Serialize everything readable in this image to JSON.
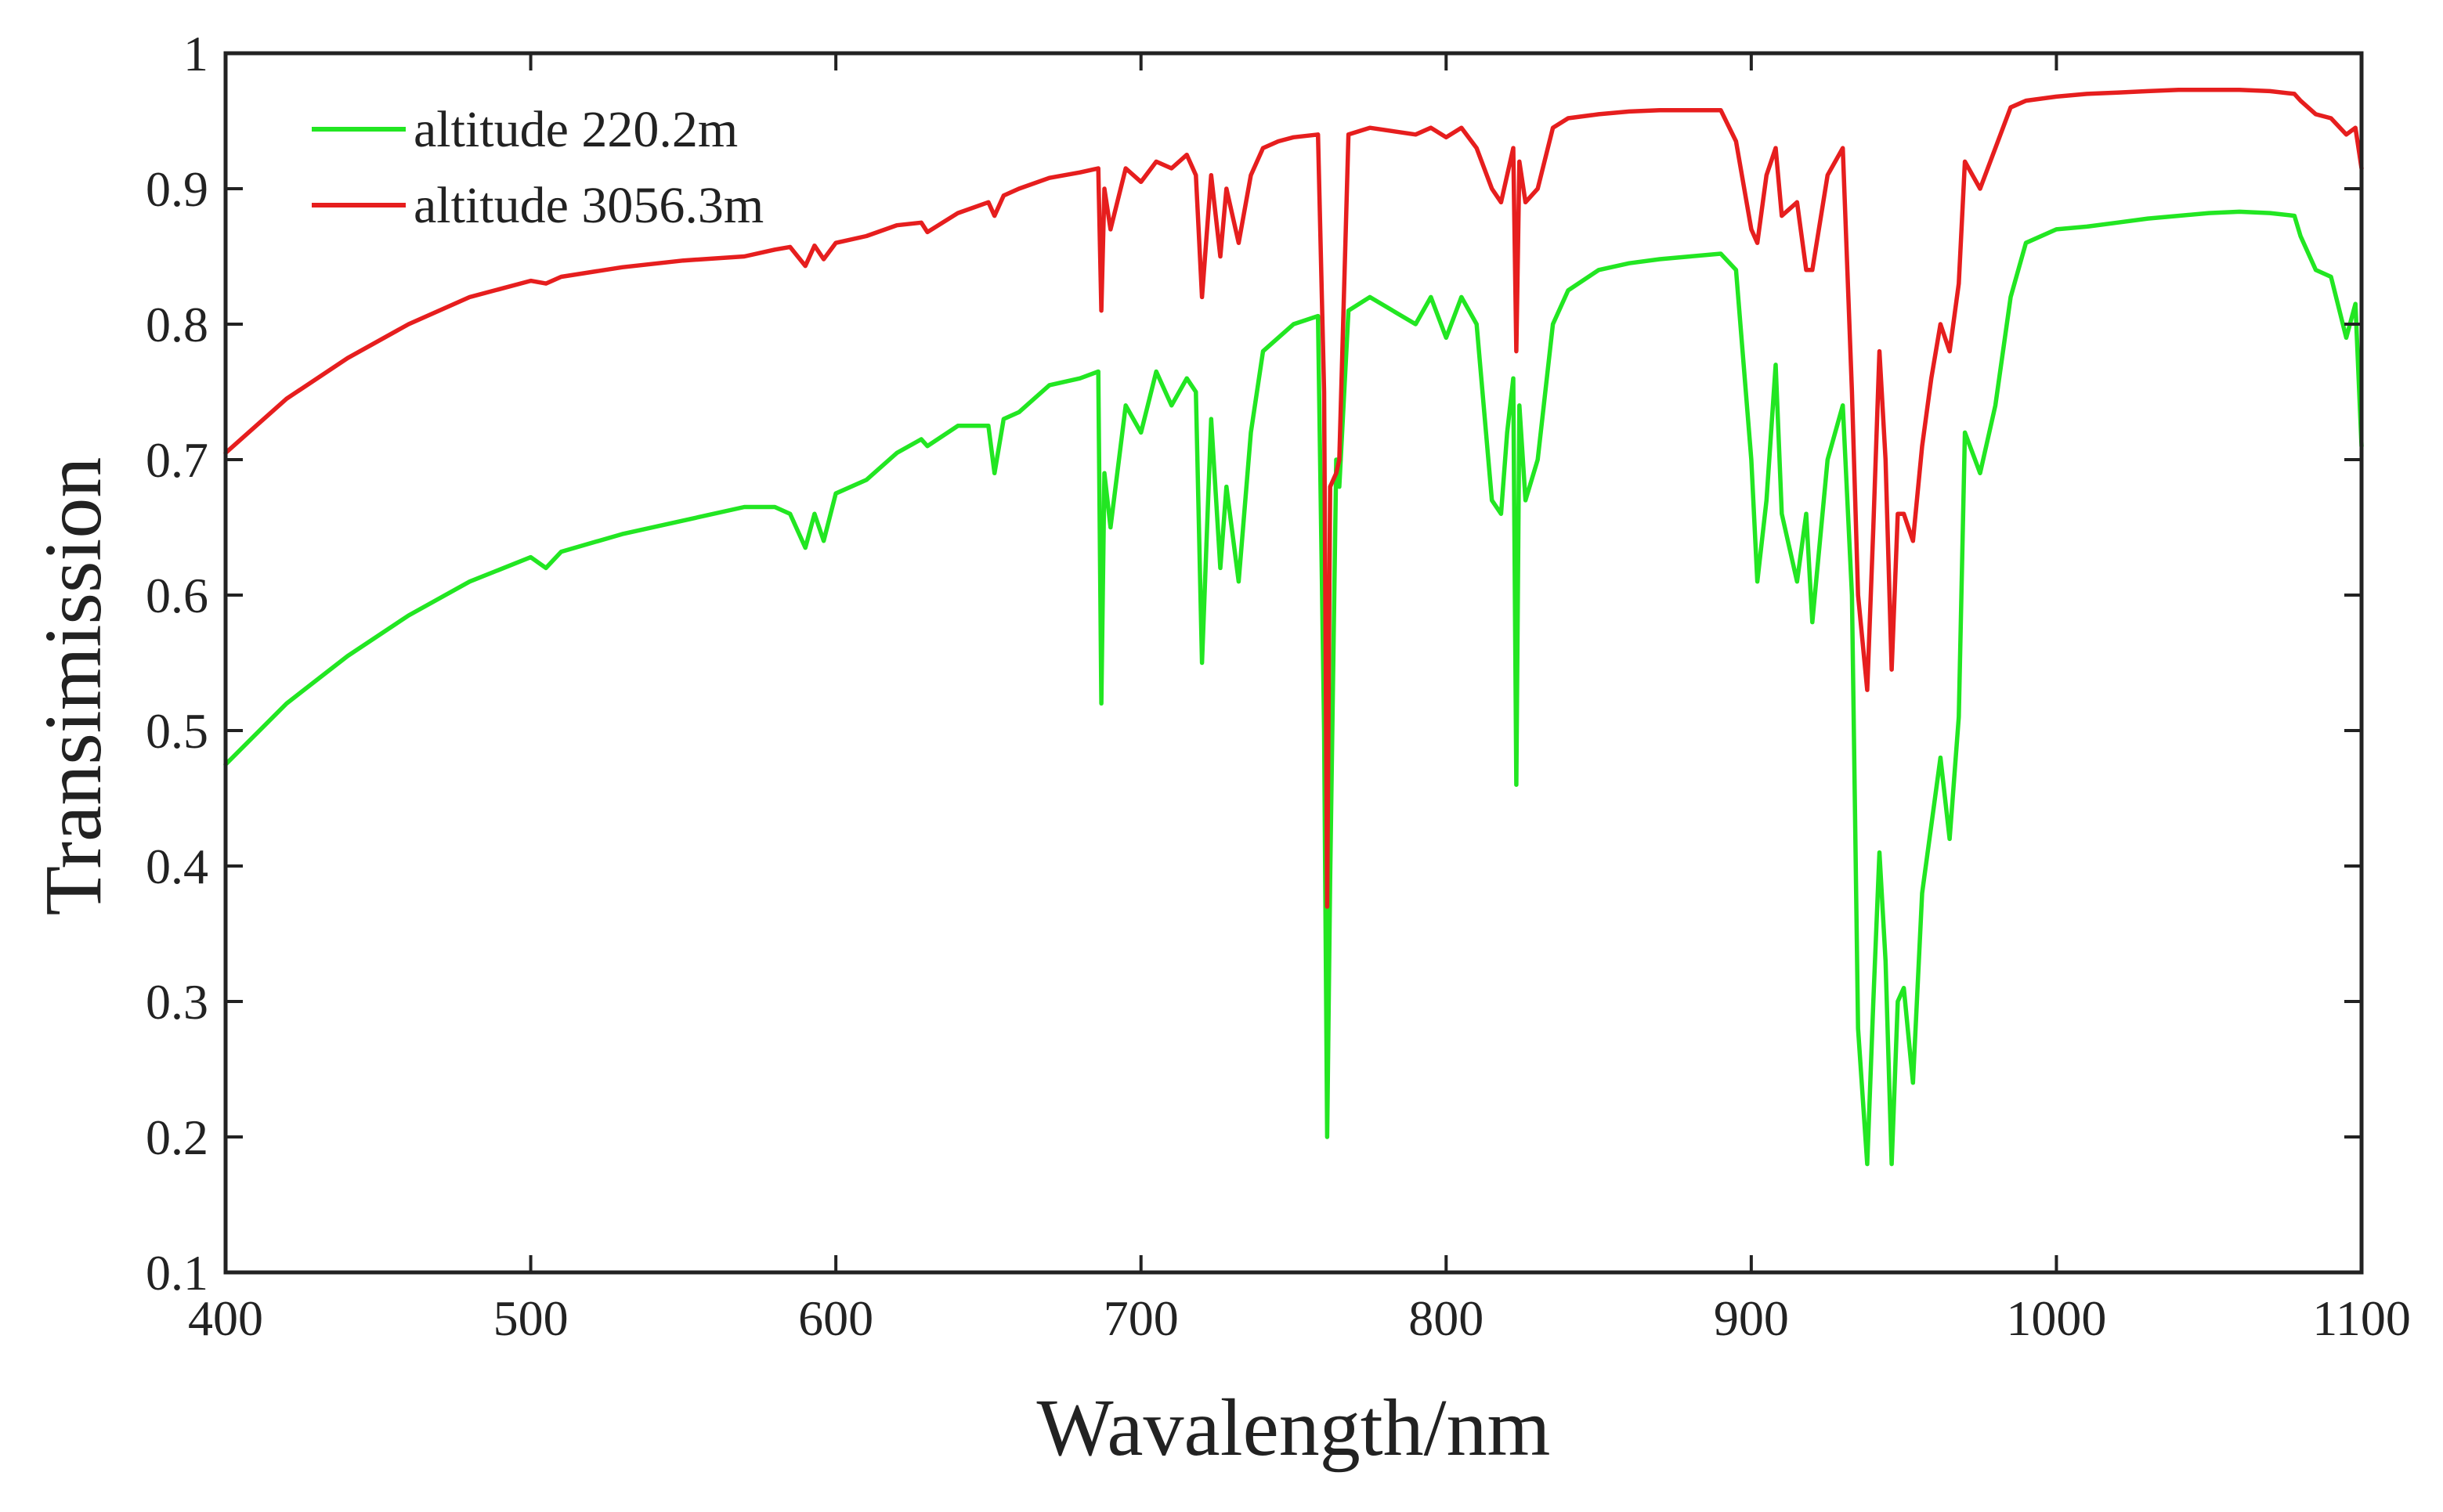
{
  "chart_data": {
    "type": "line",
    "title": "",
    "xlabel": "Wavalength/nm",
    "ylabel": "Transimission",
    "xlim": [
      400,
      1100
    ],
    "ylim": [
      0.1,
      1.0
    ],
    "xticks": [
      400,
      500,
      600,
      700,
      800,
      900,
      1000,
      1100
    ],
    "xtick_labels": [
      "400",
      "500",
      "600",
      "700",
      "800",
      "900",
      "1000",
      "1100"
    ],
    "yticks": [
      0.1,
      0.2,
      0.3,
      0.4,
      0.5,
      0.6,
      0.7,
      0.8,
      0.9,
      1.0
    ],
    "ytick_labels": [
      "0.1",
      "0.2",
      "0.3",
      "0.4",
      "0.5",
      "0.6",
      "0.7",
      "0.8",
      "0.9",
      "1"
    ],
    "grid": false,
    "legend_position": "top-left",
    "series": [
      {
        "name": "altitude 220.2m",
        "color": "#22e622",
        "x": [
          400,
          420,
          440,
          460,
          480,
          500,
          505,
          510,
          530,
          550,
          570,
          580,
          585,
          590,
          593,
          596,
          600,
          610,
          620,
          628,
          630,
          640,
          650,
          652,
          655,
          660,
          670,
          680,
          686,
          687,
          688,
          690,
          695,
          700,
          705,
          710,
          715,
          718,
          720,
          723,
          726,
          728,
          732,
          736,
          740,
          745,
          750,
          758,
          760,
          761,
          762,
          764,
          765,
          768,
          775,
          790,
          795,
          800,
          805,
          810,
          815,
          818,
          820,
          822,
          823,
          824,
          826,
          830,
          835,
          840,
          850,
          860,
          870,
          880,
          890,
          895,
          900,
          902,
          905,
          908,
          910,
          915,
          918,
          920,
          925,
          930,
          933,
          935,
          938,
          940,
          942,
          944,
          946,
          948,
          950,
          953,
          956,
          959,
          962,
          965,
          968,
          970,
          975,
          980,
          985,
          990,
          1000,
          1010,
          1020,
          1030,
          1040,
          1050,
          1060,
          1070,
          1078,
          1080,
          1085,
          1090,
          1095,
          1098,
          1100
        ],
        "values": [
          0.475,
          0.52,
          0.555,
          0.585,
          0.61,
          0.628,
          0.62,
          0.632,
          0.645,
          0.655,
          0.665,
          0.665,
          0.66,
          0.635,
          0.66,
          0.64,
          0.675,
          0.685,
          0.705,
          0.715,
          0.71,
          0.725,
          0.725,
          0.69,
          0.73,
          0.735,
          0.755,
          0.76,
          0.765,
          0.52,
          0.69,
          0.65,
          0.74,
          0.72,
          0.765,
          0.74,
          0.76,
          0.75,
          0.55,
          0.73,
          0.62,
          0.68,
          0.61,
          0.72,
          0.78,
          0.79,
          0.8,
          0.806,
          0.5,
          0.2,
          0.39,
          0.7,
          0.68,
          0.81,
          0.82,
          0.8,
          0.82,
          0.79,
          0.82,
          0.8,
          0.67,
          0.66,
          0.72,
          0.76,
          0.46,
          0.74,
          0.67,
          0.7,
          0.8,
          0.825,
          0.84,
          0.845,
          0.848,
          0.85,
          0.852,
          0.84,
          0.7,
          0.61,
          0.67,
          0.77,
          0.66,
          0.61,
          0.66,
          0.58,
          0.7,
          0.74,
          0.6,
          0.28,
          0.18,
          0.3,
          0.41,
          0.33,
          0.18,
          0.3,
          0.31,
          0.24,
          0.38,
          0.43,
          0.48,
          0.42,
          0.51,
          0.72,
          0.69,
          0.74,
          0.82,
          0.86,
          0.87,
          0.872,
          0.875,
          0.878,
          0.88,
          0.882,
          0.883,
          0.882,
          0.88,
          0.865,
          0.84,
          0.835,
          0.79,
          0.815,
          0.71
        ]
      },
      {
        "name": "altitude 3056.3m",
        "color": "#e61e1e",
        "x": [
          400,
          420,
          440,
          460,
          480,
          500,
          505,
          510,
          530,
          550,
          570,
          580,
          585,
          590,
          593,
          596,
          600,
          610,
          620,
          628,
          630,
          640,
          650,
          652,
          655,
          660,
          670,
          680,
          686,
          687,
          688,
          690,
          695,
          700,
          705,
          710,
          715,
          718,
          720,
          723,
          726,
          728,
          732,
          736,
          740,
          745,
          750,
          758,
          760,
          761,
          762,
          764,
          765,
          768,
          775,
          790,
          795,
          800,
          805,
          810,
          815,
          818,
          820,
          822,
          823,
          824,
          826,
          830,
          835,
          840,
          850,
          860,
          870,
          880,
          890,
          895,
          900,
          902,
          905,
          908,
          910,
          915,
          918,
          920,
          925,
          930,
          933,
          935,
          938,
          940,
          942,
          944,
          946,
          948,
          950,
          953,
          956,
          959,
          962,
          965,
          968,
          970,
          975,
          980,
          985,
          990,
          1000,
          1010,
          1020,
          1030,
          1040,
          1050,
          1060,
          1070,
          1078,
          1080,
          1085,
          1090,
          1095,
          1098,
          1100
        ],
        "values": [
          0.705,
          0.745,
          0.775,
          0.8,
          0.82,
          0.832,
          0.83,
          0.835,
          0.842,
          0.847,
          0.85,
          0.855,
          0.857,
          0.843,
          0.858,
          0.848,
          0.86,
          0.865,
          0.873,
          0.875,
          0.868,
          0.882,
          0.89,
          0.88,
          0.895,
          0.9,
          0.908,
          0.912,
          0.915,
          0.81,
          0.9,
          0.87,
          0.915,
          0.905,
          0.92,
          0.915,
          0.925,
          0.91,
          0.82,
          0.91,
          0.85,
          0.9,
          0.86,
          0.91,
          0.93,
          0.935,
          0.938,
          0.94,
          0.75,
          0.37,
          0.68,
          0.69,
          0.7,
          0.94,
          0.945,
          0.94,
          0.945,
          0.938,
          0.945,
          0.93,
          0.9,
          0.89,
          0.91,
          0.93,
          0.78,
          0.92,
          0.89,
          0.9,
          0.945,
          0.952,
          0.955,
          0.957,
          0.958,
          0.958,
          0.958,
          0.935,
          0.87,
          0.86,
          0.91,
          0.93,
          0.88,
          0.89,
          0.84,
          0.84,
          0.91,
          0.93,
          0.75,
          0.6,
          0.53,
          0.65,
          0.78,
          0.7,
          0.545,
          0.66,
          0.66,
          0.64,
          0.71,
          0.76,
          0.8,
          0.78,
          0.83,
          0.92,
          0.9,
          0.93,
          0.96,
          0.965,
          0.968,
          0.97,
          0.971,
          0.972,
          0.973,
          0.973,
          0.973,
          0.972,
          0.97,
          0.965,
          0.955,
          0.952,
          0.94,
          0.945,
          0.915
        ]
      }
    ]
  }
}
